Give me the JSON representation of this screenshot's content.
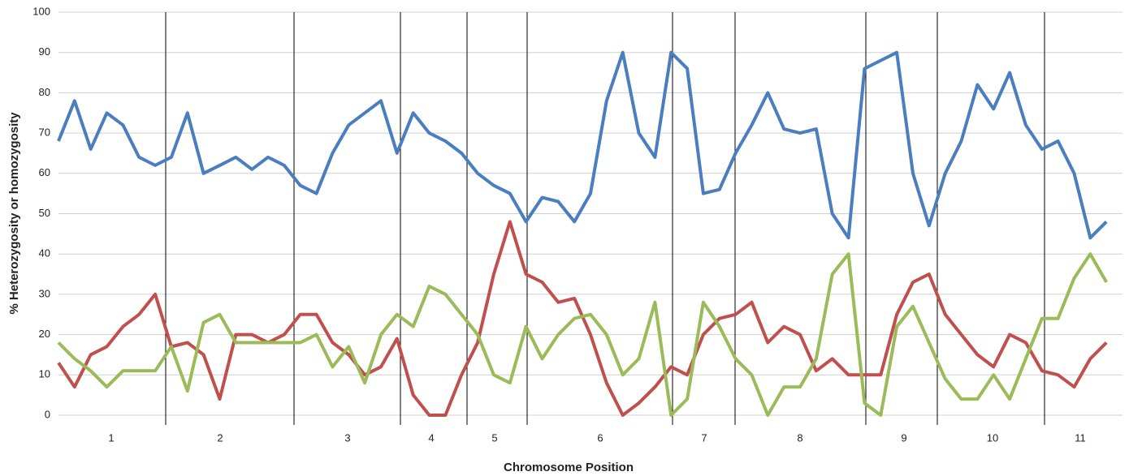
{
  "chart_data": {
    "type": "line",
    "y_label": "% Heterozygosity or homozygosity",
    "x_label": "Chromosome Position",
    "chromosomes": [
      "1",
      "2",
      "3",
      "4",
      "5",
      "6",
      "7",
      "8",
      "9",
      "10",
      "11"
    ],
    "ylim": [
      0,
      100
    ],
    "yticks": [
      0,
      10,
      20,
      30,
      40,
      50,
      60,
      70,
      80,
      90,
      100
    ],
    "grid": true,
    "series": [
      {
        "color": "#4a7ebf",
        "values": [
          68,
          78,
          66,
          75,
          72,
          64,
          62,
          64,
          75,
          60,
          62,
          64,
          61,
          64,
          62,
          57,
          55,
          65,
          72,
          75,
          78,
          65,
          75,
          70,
          68,
          65,
          60,
          57,
          55,
          48,
          54,
          53,
          48,
          55,
          78,
          90,
          70,
          64,
          90,
          86,
          55,
          56,
          65,
          72,
          80,
          71,
          70,
          71,
          50,
          44,
          86,
          88,
          90,
          60,
          47,
          60,
          68,
          82,
          76,
          85,
          72,
          66,
          68,
          60,
          44,
          48
        ]
      },
      {
        "color": "#c0504d",
        "values": [
          13,
          7,
          15,
          17,
          22,
          25,
          30,
          17,
          18,
          15,
          4,
          20,
          20,
          18,
          20,
          25,
          25,
          18,
          15,
          10,
          12,
          19,
          5,
          0,
          0,
          10,
          18,
          35,
          48,
          35,
          33,
          28,
          29,
          20,
          8,
          0,
          3,
          7,
          12,
          10,
          20,
          24,
          25,
          28,
          18,
          22,
          20,
          11,
          14,
          10,
          10,
          10,
          25,
          33,
          35,
          25,
          20,
          15,
          12,
          20,
          18,
          11,
          10,
          7,
          14,
          18
        ]
      },
      {
        "color": "#9bbb59",
        "values": [
          18,
          14,
          11,
          7,
          11,
          11,
          11,
          17,
          6,
          23,
          25,
          18,
          18,
          18,
          18,
          18,
          20,
          12,
          17,
          8,
          20,
          25,
          22,
          32,
          30,
          25,
          20,
          10,
          8,
          22,
          14,
          20,
          24,
          25,
          20,
          10,
          14,
          28,
          0,
          4,
          28,
          22,
          14,
          10,
          0,
          7,
          7,
          14,
          35,
          40,
          3,
          0,
          22,
          27,
          18,
          9,
          4,
          4,
          10,
          4,
          14,
          24,
          24,
          34,
          40,
          33
        ]
      }
    ]
  }
}
